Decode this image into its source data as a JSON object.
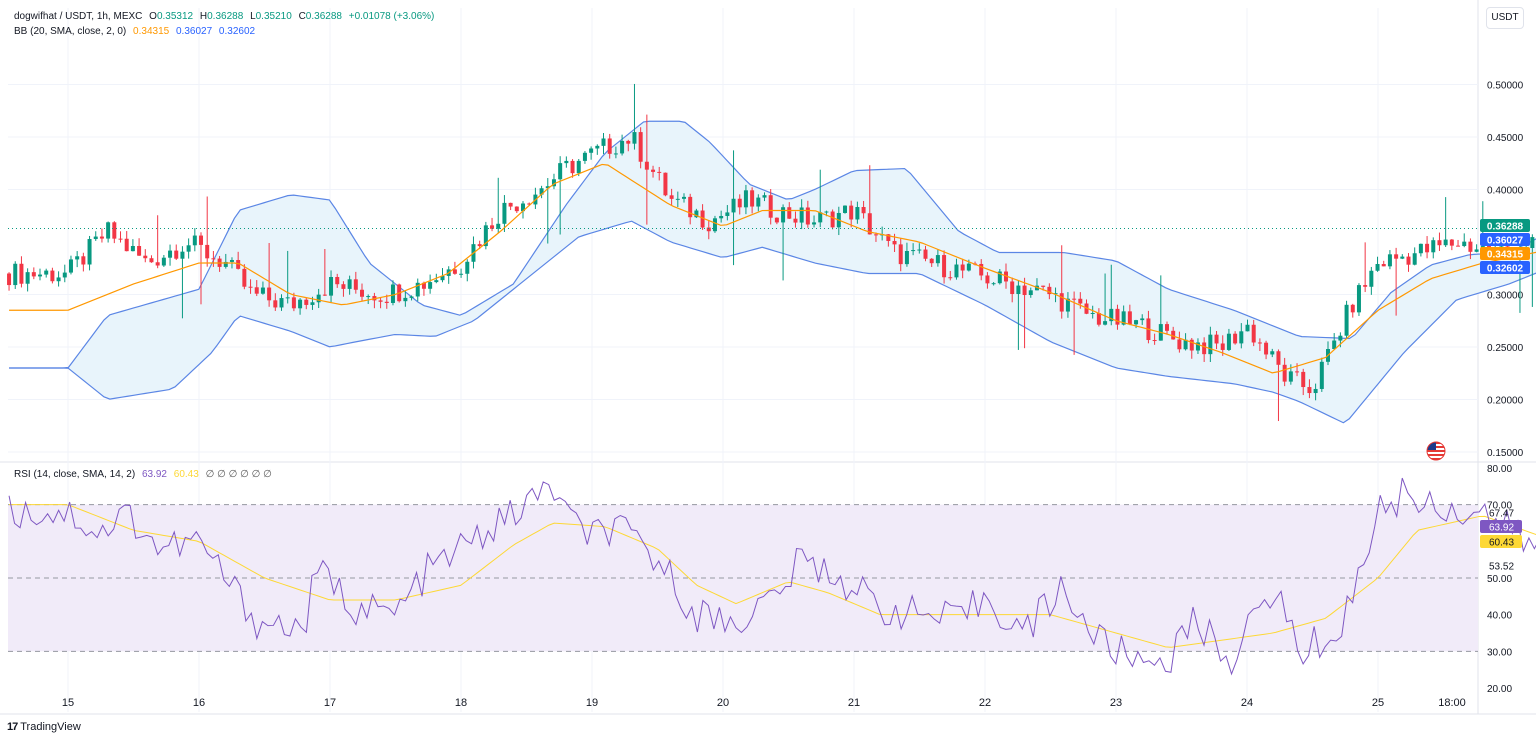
{
  "header": {
    "symbol": "dogwifhat / USDT, 1h, MEXC",
    "ohlc": [
      {
        "key": "O",
        "value": "0.35312"
      },
      {
        "key": "H",
        "value": "0.36288"
      },
      {
        "key": "L",
        "value": "0.35210"
      },
      {
        "key": "C",
        "value": "0.36288"
      }
    ],
    "change": "+0.01078 (+3.06%)",
    "bb_label": "BB (20, SMA, close, 2, 0)",
    "bb_values": [
      "0.34315",
      "0.36027",
      "0.32602"
    ]
  },
  "rsi_legend": {
    "label": "RSI (14, close, SMA, 14, 2)",
    "values": [
      "63.92",
      "60.43"
    ],
    "placeholders": [
      "∅",
      "∅",
      "∅",
      "∅",
      "∅",
      "∅"
    ]
  },
  "currency_button": "USDT",
  "brand": "TradingView",
  "colors": {
    "up": "#089981",
    "down": "#f23645",
    "bb_basis": "#ff9800",
    "bb_band": "#2962ff",
    "bb_fill": "#e8f4fb",
    "rsi": "#7e57c2",
    "rsi_ma": "#fdd835",
    "rsi_fill": "#f1ebf9"
  },
  "chart_data": [
    {
      "type": "candlestick",
      "title": "dogwifhat / USDT, 1h, MEXC",
      "x_ticks": [
        "15",
        "16",
        "17",
        "18",
        "19",
        "20",
        "21",
        "22",
        "23",
        "24",
        "25",
        "18:00"
      ],
      "y_ticks": [
        "0.50000",
        "0.45000",
        "0.40000",
        "0.30000",
        "0.25000",
        "0.20000",
        "0.15000"
      ],
      "ylim": [
        0.15,
        0.55
      ],
      "grid": true,
      "price_labels": [
        {
          "value": "0.36288",
          "color": "#089981"
        },
        {
          "value": "0.36027",
          "color": "#2962ff"
        },
        {
          "value": "0.34315",
          "color": "#ff9800"
        },
        {
          "value": "0.32602",
          "color": "#2962ff"
        }
      ],
      "current_price": 0.36288,
      "bb_upper_anchors": [
        [
          0,
          0.23
        ],
        [
          0.3,
          0.28
        ],
        [
          1.0,
          0.305
        ],
        [
          1.3,
          0.38
        ],
        [
          1.7,
          0.395
        ],
        [
          2.0,
          0.39
        ],
        [
          2.3,
          0.33
        ],
        [
          2.7,
          0.29
        ],
        [
          3.0,
          0.28
        ],
        [
          3.4,
          0.31
        ],
        [
          3.8,
          0.385
        ],
        [
          4.1,
          0.435
        ],
        [
          4.4,
          0.465
        ],
        [
          4.7,
          0.465
        ],
        [
          4.9,
          0.445
        ],
        [
          5.2,
          0.405
        ],
        [
          5.5,
          0.39
        ],
        [
          5.7,
          0.4
        ],
        [
          6.0,
          0.418
        ],
        [
          6.4,
          0.42
        ],
        [
          6.8,
          0.36
        ],
        [
          7.1,
          0.34
        ],
        [
          7.6,
          0.34
        ],
        [
          8.0,
          0.332
        ],
        [
          8.4,
          0.305
        ],
        [
          8.9,
          0.285
        ],
        [
          9.4,
          0.26
        ],
        [
          9.8,
          0.258
        ],
        [
          10.1,
          0.302
        ],
        [
          10.4,
          0.328
        ],
        [
          10.7,
          0.338
        ],
        [
          11.0,
          0.34
        ],
        [
          11.32,
          0.36
        ]
      ],
      "bb_lower_anchors": [
        [
          0,
          0.23
        ],
        [
          0.3,
          0.2
        ],
        [
          0.8,
          0.21
        ],
        [
          1.1,
          0.245
        ],
        [
          1.3,
          0.28
        ],
        [
          1.7,
          0.265
        ],
        [
          2.0,
          0.25
        ],
        [
          2.2,
          0.255
        ],
        [
          2.5,
          0.262
        ],
        [
          2.8,
          0.26
        ],
        [
          3.1,
          0.275
        ],
        [
          3.5,
          0.315
        ],
        [
          3.9,
          0.355
        ],
        [
          4.3,
          0.37
        ],
        [
          4.6,
          0.35
        ],
        [
          5.0,
          0.335
        ],
        [
          5.3,
          0.345
        ],
        [
          5.7,
          0.33
        ],
        [
          6.1,
          0.32
        ],
        [
          6.5,
          0.32
        ],
        [
          7.0,
          0.29
        ],
        [
          7.5,
          0.255
        ],
        [
          8.0,
          0.23
        ],
        [
          8.4,
          0.222
        ],
        [
          8.9,
          0.215
        ],
        [
          9.2,
          0.207
        ],
        [
          9.4,
          0.198
        ],
        [
          9.75,
          0.177
        ],
        [
          10.2,
          0.245
        ],
        [
          10.6,
          0.295
        ],
        [
          11.0,
          0.31
        ],
        [
          11.32,
          0.326
        ]
      ],
      "bb_basis_anchors": [
        [
          0,
          0.285
        ],
        [
          0.5,
          0.31
        ],
        [
          1.0,
          0.33
        ],
        [
          1.3,
          0.33
        ],
        [
          1.7,
          0.3
        ],
        [
          2.1,
          0.29
        ],
        [
          2.5,
          0.3
        ],
        [
          2.9,
          0.32
        ],
        [
          3.3,
          0.36
        ],
        [
          3.7,
          0.405
        ],
        [
          4.1,
          0.425
        ],
        [
          4.6,
          0.385
        ],
        [
          5.0,
          0.365
        ],
        [
          5.3,
          0.38
        ],
        [
          5.7,
          0.38
        ],
        [
          6.1,
          0.36
        ],
        [
          6.5,
          0.35
        ],
        [
          7.0,
          0.325
        ],
        [
          7.5,
          0.302
        ],
        [
          8.0,
          0.275
        ],
        [
          8.4,
          0.262
        ],
        [
          8.8,
          0.245
        ],
        [
          9.2,
          0.225
        ],
        [
          9.6,
          0.24
        ],
        [
          10.0,
          0.285
        ],
        [
          10.4,
          0.315
        ],
        [
          10.8,
          0.33
        ],
        [
          11.32,
          0.343
        ]
      ],
      "price_anchors": [
        [
          0,
          0.32
        ],
        [
          0.3,
          0.36
        ],
        [
          0.6,
          0.33
        ],
        [
          0.9,
          0.35
        ],
        [
          1.2,
          0.33
        ],
        [
          1.4,
          0.3
        ],
        [
          1.7,
          0.29
        ],
        [
          2.0,
          0.31
        ],
        [
          2.4,
          0.3
        ],
        [
          2.7,
          0.31
        ],
        [
          3.0,
          0.33
        ],
        [
          3.3,
          0.38
        ],
        [
          3.6,
          0.4
        ],
        [
          3.8,
          0.42
        ],
        [
          4.1,
          0.44
        ],
        [
          4.3,
          0.45
        ],
        [
          4.6,
          0.39
        ],
        [
          4.9,
          0.37
        ],
        [
          5.2,
          0.39
        ],
        [
          5.4,
          0.38
        ],
        [
          5.7,
          0.37
        ],
        [
          6.0,
          0.38
        ],
        [
          6.3,
          0.34
        ],
        [
          6.6,
          0.33
        ],
        [
          6.9,
          0.32
        ],
        [
          7.2,
          0.31
        ],
        [
          7.5,
          0.3
        ],
        [
          7.8,
          0.28
        ],
        [
          8.2,
          0.27
        ],
        [
          8.5,
          0.255
        ],
        [
          8.8,
          0.25
        ],
        [
          9.0,
          0.27
        ],
        [
          9.3,
          0.22
        ],
        [
          9.5,
          0.21
        ],
        [
          9.8,
          0.29
        ],
        [
          10.0,
          0.33
        ],
        [
          10.3,
          0.34
        ],
        [
          10.6,
          0.35
        ],
        [
          10.9,
          0.34
        ],
        [
          11.2,
          0.35
        ],
        [
          11.32,
          0.36288
        ]
      ]
    },
    {
      "type": "line",
      "title": "RSI (14, close, SMA, 14, 2)",
      "y_ticks": [
        "80.00",
        "70.00",
        "50.00",
        "40.00",
        "30.00",
        "20.00"
      ],
      "ylim": [
        20,
        80
      ],
      "bands": [
        30,
        50,
        70
      ],
      "value_labels": [
        {
          "value": "67.47",
          "color": "none"
        },
        {
          "value": "63.92",
          "color": "#7e57c2"
        },
        {
          "value": "60.43",
          "color": "#fdd835"
        },
        {
          "value": "53.52",
          "color": "none"
        }
      ],
      "rsi_anchors": [
        [
          0,
          68
        ],
        [
          0.25,
          62
        ],
        [
          0.45,
          68
        ],
        [
          0.7,
          58
        ],
        [
          1.0,
          60
        ],
        [
          1.2,
          50
        ],
        [
          1.45,
          38
        ],
        [
          1.8,
          36
        ],
        [
          1.9,
          52
        ],
        [
          2.2,
          42
        ],
        [
          2.5,
          40
        ],
        [
          2.75,
          52
        ],
        [
          3.0,
          58
        ],
        [
          3.3,
          65
        ],
        [
          3.7,
          75
        ],
        [
          3.9,
          62
        ],
        [
          4.2,
          63
        ],
        [
          4.5,
          55
        ],
        [
          4.8,
          40
        ],
        [
          5.1,
          38
        ],
        [
          5.4,
          45
        ],
        [
          5.6,
          55
        ],
        [
          5.9,
          50
        ],
        [
          6.2,
          42
        ],
        [
          6.5,
          40
        ],
        [
          6.8,
          38
        ],
        [
          7.0,
          45
        ],
        [
          7.3,
          35
        ],
        [
          7.6,
          48
        ],
        [
          7.8,
          35
        ],
        [
          8.1,
          28
        ],
        [
          8.4,
          28
        ],
        [
          8.6,
          38
        ],
        [
          8.9,
          28
        ],
        [
          9.2,
          48
        ],
        [
          9.4,
          30
        ],
        [
          9.7,
          35
        ],
        [
          9.8,
          45
        ],
        [
          10.0,
          68
        ],
        [
          10.2,
          73
        ],
        [
          10.5,
          69
        ],
        [
          10.8,
          68
        ],
        [
          11.05,
          62
        ],
        [
          11.2,
          58
        ],
        [
          11.32,
          63.92
        ]
      ],
      "rsi_ma_anchors": [
        [
          0,
          70
        ],
        [
          0.5,
          63
        ],
        [
          1.0,
          60
        ],
        [
          1.5,
          50
        ],
        [
          2.0,
          44
        ],
        [
          2.5,
          44
        ],
        [
          3.0,
          48
        ],
        [
          3.4,
          59
        ],
        [
          3.7,
          65
        ],
        [
          4.1,
          64
        ],
        [
          4.5,
          58
        ],
        [
          4.8,
          48
        ],
        [
          5.1,
          43
        ],
        [
          5.5,
          49
        ],
        [
          5.8,
          46
        ],
        [
          6.2,
          40
        ],
        [
          6.6,
          40
        ],
        [
          7.0,
          40
        ],
        [
          7.5,
          40
        ],
        [
          8.0,
          35
        ],
        [
          8.4,
          31
        ],
        [
          8.8,
          33
        ],
        [
          9.2,
          35
        ],
        [
          9.6,
          39
        ],
        [
          10.0,
          50
        ],
        [
          10.3,
          63
        ],
        [
          10.8,
          67
        ],
        [
          11.32,
          60.43
        ]
      ]
    }
  ]
}
